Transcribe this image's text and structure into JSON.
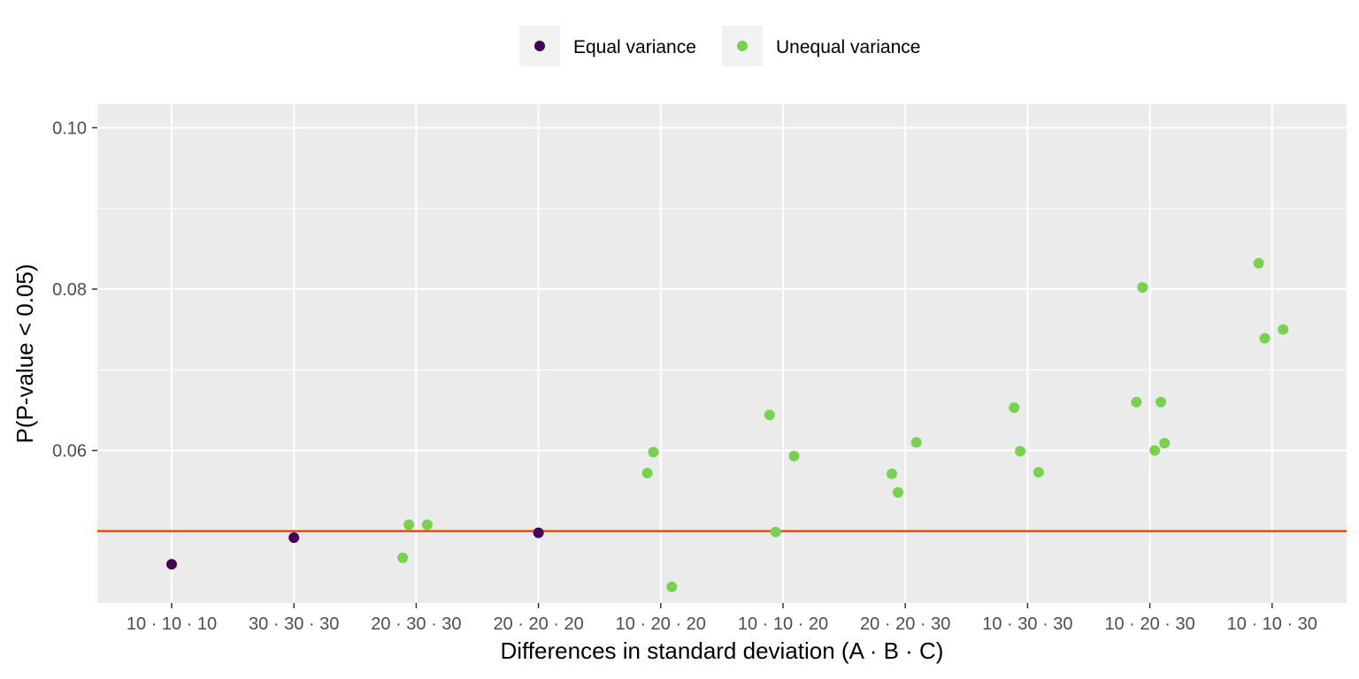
{
  "chart_data": {
    "type": "scatter",
    "title": "",
    "xlabel": "Differences in standard deviation (A · B · C)",
    "ylabel": "P(P-value < 0.05)",
    "categories": [
      "10 · 10 · 10",
      "30 · 30 · 30",
      "20 · 30 · 30",
      "20 · 20 · 20",
      "10 · 20 · 20",
      "10 · 10 · 20",
      "20 · 20 · 30",
      "10 · 30 · 30",
      "10 · 20 · 30",
      "10 · 10 · 30"
    ],
    "ylim": [
      0.0411,
      0.1029
    ],
    "yticks": [
      0.06,
      0.08,
      0.1
    ],
    "ytick_labels": [
      "0.06",
      "0.08",
      "0.10"
    ],
    "grid": true,
    "legend_position": "top",
    "reference_line": {
      "y": 0.05,
      "color": "#ff4500"
    },
    "series": [
      {
        "name": "Equal variance",
        "color": "#440154",
        "points": [
          {
            "x": "10 · 10 · 10",
            "y": 0.0459
          },
          {
            "x": "30 · 30 · 30",
            "y": 0.0492
          },
          {
            "x": "20 · 20 · 20",
            "y": 0.0498
          }
        ]
      },
      {
        "name": "Unequal variance",
        "color": "#7ad151",
        "points": [
          {
            "x": "20 · 30 · 30",
            "y": 0.0467
          },
          {
            "x": "20 · 30 · 30",
            "y": 0.0508
          },
          {
            "x": "20 · 30 · 30",
            "y": 0.0508
          },
          {
            "x": "10 · 20 · 20",
            "y": 0.0572
          },
          {
            "x": "10 · 20 · 20",
            "y": 0.0431
          },
          {
            "x": "10 · 20 · 20",
            "y": 0.0598
          },
          {
            "x": "10 · 10 · 20",
            "y": 0.0644
          },
          {
            "x": "10 · 10 · 20",
            "y": 0.0593
          },
          {
            "x": "10 · 10 · 20",
            "y": 0.0499
          },
          {
            "x": "20 · 20 · 30",
            "y": 0.0571
          },
          {
            "x": "20 · 20 · 30",
            "y": 0.061
          },
          {
            "x": "20 · 20 · 30",
            "y": 0.0548
          },
          {
            "x": "10 · 30 · 30",
            "y": 0.0653
          },
          {
            "x": "10 · 30 · 30",
            "y": 0.0573
          },
          {
            "x": "10 · 30 · 30",
            "y": 0.0599
          },
          {
            "x": "10 · 20 · 30",
            "y": 0.066
          },
          {
            "x": "10 · 20 · 30",
            "y": 0.066
          },
          {
            "x": "10 · 20 · 30",
            "y": 0.0802
          },
          {
            "x": "10 · 20 · 30",
            "y": 0.0609
          },
          {
            "x": "10 · 20 · 30",
            "y": 0.06
          },
          {
            "x": "10 · 10 · 30",
            "y": 0.0832
          },
          {
            "x": "10 · 10 · 30",
            "y": 0.075
          },
          {
            "x": "10 · 10 · 30",
            "y": 0.0739
          }
        ]
      }
    ]
  }
}
